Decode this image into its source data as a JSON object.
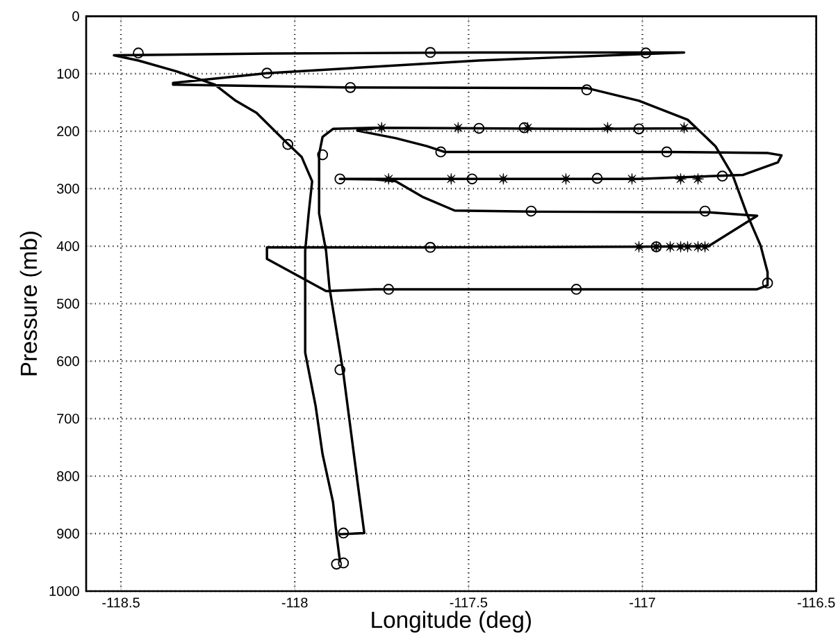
{
  "chart_data": {
    "type": "line",
    "xlabel": "Longitude (deg)",
    "ylabel": "Pressure (mb)",
    "xlim": [
      -118.6,
      -116.5
    ],
    "ylim": [
      1000,
      0
    ],
    "xticks": [
      -118.5,
      -118,
      -117.5,
      -117,
      -116.5
    ],
    "yticks": [
      0,
      100,
      200,
      300,
      400,
      500,
      600,
      700,
      800,
      900,
      1000
    ],
    "grid": true,
    "series": [
      {
        "type": "line",
        "marker": "none",
        "line_style": "solid",
        "color": "#000000",
        "x": [
          -117.87,
          -117.8,
          -117.82,
          -117.84,
          -117.86,
          -117.88,
          -117.9,
          -117.91,
          -117.93,
          -117.93,
          -117.92,
          -117.89,
          -117.77,
          -117.47,
          -117.16,
          -116.85,
          null,
          -117.87,
          -117.88,
          -117.89,
          -117.92,
          -117.94,
          -117.97,
          -117.97,
          -117.96,
          -117.95,
          -117.98,
          -118.02,
          -118.11,
          -118.17,
          -118.23,
          -118.34,
          -118.45,
          -118.52,
          -118.08,
          -117.47,
          -116.88,
          -117.47,
          -118.08,
          -118.35,
          -118.35,
          -117.85,
          -117.16,
          -117.01,
          -116.87,
          -116.79,
          -116.74,
          -116.7,
          -116.66,
          -116.64,
          -116.64,
          -116.67,
          -117.77,
          -117.91,
          -118.08,
          -118.08,
          -117.62,
          -117.01,
          -116.81,
          -116.67,
          -116.81,
          -117.31,
          -117.54,
          -117.63,
          -117.71,
          -117.77,
          -117.87,
          -117.01,
          -116.71,
          -116.61,
          -116.6,
          -116.64,
          -116.93,
          -117.57,
          -117.62,
          -117.71,
          -117.82,
          -117.77
        ],
        "values": [
          901,
          899,
          808,
          715,
          622,
          547,
          473,
          408,
          343,
          240,
          210,
          196,
          194,
          195,
          196,
          195,
          null,
          948,
          901,
          845,
          762,
          678,
          585,
          408,
          343,
          287,
          245,
          222,
          168,
          147,
          119,
          96,
          77,
          68,
          65,
          63,
          63,
          77,
          99,
          116,
          119,
          124,
          125,
          147,
          180,
          226,
          277,
          343,
          399,
          445,
          468,
          475,
          475,
          478,
          422,
          402,
          402,
          401,
          400,
          347,
          341,
          340,
          338,
          315,
          287,
          284,
          283,
          283,
          276,
          254,
          242,
          238,
          236,
          236,
          226,
          212,
          199,
          195
        ]
      },
      {
        "type": "scatter",
        "marker": "circle",
        "color": "#000000",
        "x": [
          -118.45,
          -117.61,
          -116.99,
          -118.08,
          -117.84,
          -117.16,
          -118.02,
          -117.92,
          -117.47,
          -117.34,
          -117.01,
          -117.58,
          -116.93,
          -117.87,
          -117.49,
          -117.13,
          -116.77,
          -117.32,
          -116.82,
          -117.61,
          -116.96,
          -116.64,
          -117.73,
          -117.19,
          -117.87,
          -117.86,
          -117.88,
          -117.86
        ],
        "values": [
          64,
          63,
          64,
          99,
          124,
          128,
          223,
          241,
          195,
          194,
          196,
          236,
          236,
          283,
          283,
          282,
          278,
          339,
          339,
          402,
          401,
          464,
          475,
          475,
          615,
          899,
          953,
          951
        ]
      },
      {
        "type": "scatter",
        "marker": "star",
        "color": "#000000",
        "x": [
          -117.75,
          -117.53,
          -117.33,
          -117.1,
          -116.88,
          -117.73,
          -117.55,
          -117.4,
          -117.22,
          -117.03,
          -116.89,
          -116.84,
          -117.01,
          -116.96,
          -116.92,
          -116.89,
          -116.87,
          -116.84,
          -116.82
        ],
        "values": [
          194,
          194,
          194,
          194,
          194,
          283,
          283,
          283,
          283,
          283,
          283,
          283,
          401,
          401,
          401,
          401,
          401,
          401,
          401
        ]
      }
    ]
  }
}
